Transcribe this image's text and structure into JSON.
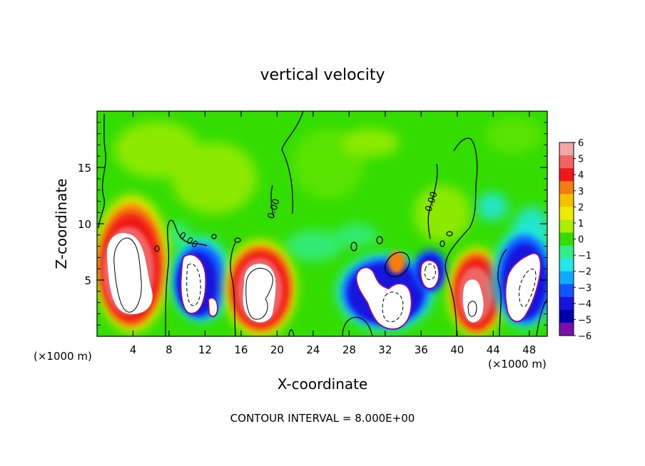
{
  "chart_data": {
    "type": "heatmap",
    "title": "vertical velocity",
    "xlabel": "X-coordinate",
    "ylabel": "Z-coordinate",
    "x_unit_left": "(×1000 m)",
    "x_unit_right": "(×1000 m)",
    "footer": "CONTOUR INTERVAL = 8.000E+00",
    "xlim": [
      0,
      50
    ],
    "ylim": [
      0,
      20
    ],
    "x_ticks": [
      4,
      8,
      12,
      16,
      20,
      24,
      28,
      32,
      36,
      40,
      44,
      48
    ],
    "y_ticks": [
      5,
      10,
      15
    ],
    "colorbar": {
      "ticks": [
        6,
        5,
        4,
        3,
        2,
        1,
        0,
        -1,
        -2,
        -3,
        -4,
        -5,
        -6
      ],
      "colors": [
        "#f4a6a6",
        "#f26464",
        "#f01818",
        "#f57d10",
        "#f3c000",
        "#ecec00",
        "#aaee00",
        "#33dd00",
        "#33ee88",
        "#22e8e8",
        "#11aaff",
        "#1155ff",
        "#1515dd",
        "#0000aa",
        "#7711aa"
      ]
    },
    "contour_labels": [
      "0.00",
      "0.00",
      "0.00"
    ],
    "cells": [
      {
        "x": 5.5,
        "z": 5.5,
        "sign": "+"
      },
      {
        "x": 12,
        "z": 4.5,
        "sign": "-"
      },
      {
        "x": 18.5,
        "z": 4.5,
        "sign": "+"
      },
      {
        "x": 32,
        "z": 4,
        "sign": "-"
      },
      {
        "x": 37,
        "z": 5.5,
        "sign": "-"
      },
      {
        "x": 42,
        "z": 4,
        "sign": "+"
      },
      {
        "x": 47,
        "z": 5,
        "sign": "-"
      }
    ]
  }
}
